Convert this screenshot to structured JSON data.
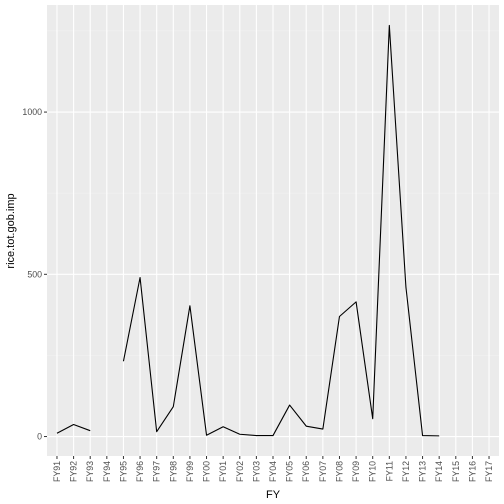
{
  "chart_data": {
    "type": "line",
    "xlabel": "FY",
    "ylabel": "rice.tot.gob.imp",
    "categories": [
      "FY91",
      "FY92",
      "FY93",
      "FY94",
      "FY95",
      "FY96",
      "FY97",
      "FY98",
      "FY99",
      "FY00",
      "FY01",
      "FY02",
      "FY03",
      "FY04",
      "FY05",
      "FY06",
      "FY07",
      "FY08",
      "FY09",
      "FY10",
      "FY11",
      "FY12",
      "FY13",
      "FY14",
      "FY15",
      "FY16",
      "FY17"
    ],
    "series": [
      {
        "values": [
          10,
          37,
          18,
          null,
          232,
          490,
          15,
          92,
          403,
          4,
          30,
          7,
          3,
          3,
          97,
          32,
          23,
          370,
          415,
          55,
          1267,
          460,
          3,
          2,
          null,
          null,
          null
        ]
      }
    ],
    "ylim": [
      -60,
      1330
    ],
    "yticks": [
      0,
      500,
      1000
    ],
    "ytick_labels": [
      "0",
      "500",
      "1000"
    ],
    "grid": true,
    "legend": "none",
    "colors": {
      "panel_background": "#EBEBEB",
      "grid_major": "#FFFFFF",
      "grid_minor": "#F2F2F2",
      "line": "#000000",
      "tick_text": "#4D4D4D",
      "tick_mark": "#333333"
    }
  }
}
